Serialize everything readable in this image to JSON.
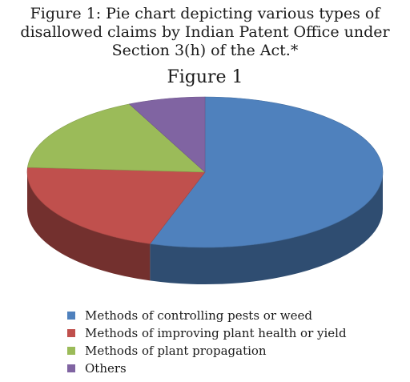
{
  "caption": "Figure 1: Pie chart depicting various types of disallowed claims by Indian Patent Office under Section 3(h) of the Act.*",
  "chart_data": {
    "type": "pie",
    "title": "Figure 1",
    "legend_position": "bottom",
    "slices": [
      {
        "label": "Methods of controlling pests or weed",
        "value": 55,
        "color": "#4F81BD"
      },
      {
        "label": "Methods of improving plant health or yield",
        "value": 21,
        "color": "#C0504D"
      },
      {
        "label": "Methods of plant propagation",
        "value": 17,
        "color": "#9BBB59"
      },
      {
        "label": "Others",
        "value": 7,
        "color": "#8064A2"
      }
    ]
  }
}
